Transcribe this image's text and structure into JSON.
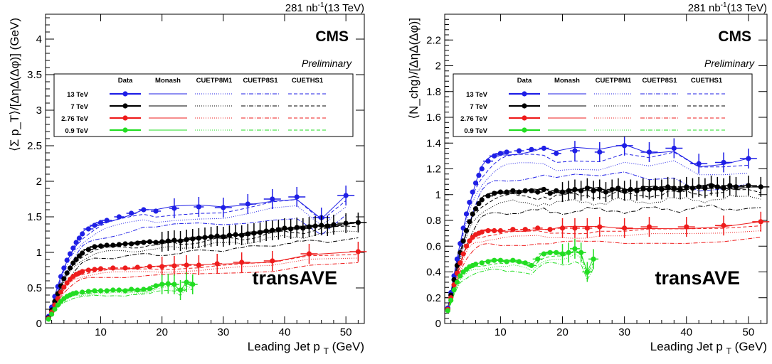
{
  "lumi_label": "281 nb",
  "lumi_exp": "-1",
  "lumi_energy": "(13 TeV)",
  "experiment": "CMS",
  "status": "Preliminary",
  "region": "transAVE",
  "legend": {
    "columns": [
      "Data",
      "Monash",
      "CUETP8M1",
      "CUETP8S1",
      "CUETHS1"
    ],
    "rows": [
      "13 TeV",
      "7 TeV",
      "2.76 TeV",
      "0.9 TeV"
    ]
  },
  "colors": {
    "13 TeV": "#1f1fe6",
    "7 TeV": "#000000",
    "2.76 TeV": "#ee1c1c",
    "0.9 TeV": "#22dd22"
  },
  "chart_data": [
    {
      "type": "scatter",
      "panel": "left",
      "xlabel_main": "Leading Jet p",
      "xlabel_sub": "T",
      "xlabel_unit": "(GeV)",
      "ylabel": "⟨Σ p_T⟩/[ΔηΔ(Δφ)] (GeV)",
      "xlim": [
        1,
        53
      ],
      "ylim": [
        0,
        4.35
      ],
      "xticks": [
        "10",
        "20",
        "30",
        "40",
        "50"
      ],
      "yticks": [
        "0",
        "0.5",
        "1",
        "1.5",
        "2",
        "2.5",
        "3",
        "3.5",
        "4"
      ],
      "series": [
        {
          "name": "13 TeV",
          "x": [
            1.5,
            2.0,
            2.5,
            3.0,
            3.5,
            4.0,
            4.5,
            5.0,
            5.5,
            6.0,
            6.5,
            7.0,
            8.0,
            9.0,
            10.0,
            11.0,
            13.0,
            15.0,
            17.0,
            19.0,
            22.0,
            26.0,
            30.0,
            34.0,
            38.0,
            42.0,
            46.0,
            50.0
          ],
          "y": [
            0.1,
            0.23,
            0.38,
            0.52,
            0.66,
            0.78,
            0.89,
            0.98,
            1.06,
            1.14,
            1.2,
            1.26,
            1.33,
            1.38,
            1.42,
            1.45,
            1.5,
            1.55,
            1.6,
            1.58,
            1.62,
            1.64,
            1.63,
            1.68,
            1.75,
            1.78,
            1.49,
            1.8
          ]
        },
        {
          "name": "7 TeV",
          "x": [
            1.5,
            2.0,
            2.5,
            3.0,
            3.5,
            4.0,
            4.5,
            5.0,
            5.5,
            6.0,
            6.5,
            7.0,
            8.0,
            9.0,
            10.0,
            11.0,
            12.0,
            13.0,
            14.0,
            15.0,
            16.0,
            17.0,
            18.0,
            19.0,
            20.0,
            21.0,
            22.0,
            23.0,
            24.0,
            25.0,
            26.0,
            27.0,
            28.0,
            29.0,
            30.0,
            31.0,
            32.0,
            33.0,
            34.0,
            35.0,
            36.0,
            37.0,
            38.0,
            39.0,
            40.0,
            41.0,
            42.0,
            43.0,
            44.0,
            45.0,
            46.0,
            47.0,
            48.0,
            50.0,
            52.0
          ],
          "y": [
            0.08,
            0.19,
            0.31,
            0.42,
            0.53,
            0.63,
            0.71,
            0.78,
            0.85,
            0.9,
            0.95,
            0.99,
            1.04,
            1.08,
            1.09,
            1.1,
            1.1,
            1.11,
            1.12,
            1.12,
            1.13,
            1.14,
            1.15,
            1.14,
            1.15,
            1.16,
            1.17,
            1.16,
            1.18,
            1.19,
            1.2,
            1.21,
            1.22,
            1.23,
            1.22,
            1.24,
            1.25,
            1.24,
            1.26,
            1.27,
            1.28,
            1.3,
            1.31,
            1.32,
            1.34,
            1.33,
            1.35,
            1.34,
            1.36,
            1.37,
            1.38,
            1.37,
            1.39,
            1.41,
            1.42
          ]
        },
        {
          "name": "2.76 TeV",
          "x": [
            1.5,
            2.0,
            2.5,
            3.0,
            3.5,
            4.0,
            4.5,
            5.0,
            5.5,
            6.0,
            6.5,
            7.0,
            8.0,
            9.0,
            10.0,
            12.0,
            14.0,
            16.0,
            18.0,
            20.0,
            22.0,
            24.0,
            26.0,
            29.0,
            33.0,
            38.0,
            44.0,
            52.0
          ],
          "y": [
            0.07,
            0.16,
            0.26,
            0.35,
            0.44,
            0.51,
            0.57,
            0.62,
            0.66,
            0.69,
            0.71,
            0.73,
            0.75,
            0.76,
            0.77,
            0.78,
            0.78,
            0.79,
            0.8,
            0.8,
            0.81,
            0.82,
            0.82,
            0.84,
            0.86,
            0.88,
            0.98,
            1.01
          ]
        },
        {
          "name": "0.9 TeV",
          "x": [
            1.5,
            2.0,
            2.5,
            3.0,
            3.5,
            4.0,
            4.5,
            5.0,
            5.5,
            6.0,
            7.0,
            8.0,
            9.0,
            10.0,
            11.0,
            12.0,
            13.0,
            14.0,
            15.0,
            16.0,
            17.0,
            18.0,
            19.0,
            20.0,
            21.0,
            22.0,
            23.0,
            24.0,
            25.0
          ],
          "y": [
            0.06,
            0.13,
            0.2,
            0.26,
            0.31,
            0.35,
            0.38,
            0.4,
            0.42,
            0.43,
            0.44,
            0.45,
            0.46,
            0.46,
            0.46,
            0.47,
            0.47,
            0.46,
            0.48,
            0.47,
            0.48,
            0.49,
            0.53,
            0.55,
            0.56,
            0.55,
            0.47,
            0.58,
            0.55
          ]
        }
      ]
    },
    {
      "type": "scatter",
      "panel": "right",
      "xlabel_main": "Leading Jet p",
      "xlabel_sub": "T",
      "xlabel_unit": "(GeV)",
      "ylabel": "⟨N_chg⟩/[ΔηΔ(Δφ)]",
      "xlim": [
        1,
        53
      ],
      "ylim": [
        0,
        2.4
      ],
      "xticks": [
        "10",
        "20",
        "30",
        "40",
        "50"
      ],
      "yticks": [
        "0",
        "0.2",
        "0.4",
        "0.6",
        "0.8",
        "1",
        "1.2",
        "1.4",
        "1.6",
        "1.8",
        "2",
        "2.2"
      ],
      "series": [
        {
          "name": "13 TeV",
          "x": [
            1.5,
            2.0,
            2.5,
            3.0,
            3.5,
            4.0,
            4.5,
            5.0,
            5.5,
            6.0,
            6.5,
            7.0,
            8.0,
            9.0,
            10.0,
            11.0,
            13.0,
            15.0,
            17.0,
            19.0,
            22.0,
            26.0,
            30.0,
            34.0,
            38.0,
            42.0,
            46.0,
            50.0
          ],
          "y": [
            0.12,
            0.24,
            0.37,
            0.5,
            0.62,
            0.74,
            0.85,
            0.94,
            1.02,
            1.09,
            1.15,
            1.2,
            1.26,
            1.3,
            1.32,
            1.33,
            1.34,
            1.35,
            1.36,
            1.32,
            1.34,
            1.33,
            1.38,
            1.33,
            1.36,
            1.24,
            1.25,
            1.28
          ]
        },
        {
          "name": "7 TeV",
          "x": [
            1.5,
            2.0,
            2.5,
            3.0,
            3.5,
            4.0,
            4.5,
            5.0,
            5.5,
            6.0,
            6.5,
            7.0,
            8.0,
            9.0,
            10.0,
            11.0,
            12.0,
            13.0,
            14.0,
            15.0,
            16.0,
            17.0,
            18.0,
            19.0,
            20.0,
            21.0,
            22.0,
            23.0,
            24.0,
            25.0,
            26.0,
            27.0,
            28.0,
            29.0,
            30.0,
            31.0,
            32.0,
            33.0,
            34.0,
            35.0,
            36.0,
            37.0,
            38.0,
            39.0,
            40.0,
            41.0,
            42.0,
            43.0,
            44.0,
            45.0,
            46.0,
            47.0,
            48.0,
            50.0,
            52.0
          ],
          "y": [
            0.11,
            0.22,
            0.34,
            0.45,
            0.55,
            0.64,
            0.72,
            0.79,
            0.85,
            0.89,
            0.93,
            0.96,
            0.99,
            1.01,
            1.02,
            1.02,
            1.03,
            1.02,
            1.03,
            1.03,
            1.02,
            1.04,
            1.01,
            1.03,
            1.02,
            1.03,
            1.04,
            1.03,
            1.05,
            1.03,
            1.04,
            1.02,
            1.04,
            1.05,
            1.03,
            1.04,
            1.03,
            1.05,
            1.04,
            1.05,
            1.04,
            1.06,
            1.05,
            1.04,
            1.06,
            1.05,
            1.06,
            1.05,
            1.07,
            1.06,
            1.05,
            1.07,
            1.06,
            1.07,
            1.06
          ]
        },
        {
          "name": "2.76 TeV",
          "x": [
            1.5,
            2.0,
            2.5,
            3.0,
            3.5,
            4.0,
            4.5,
            5.0,
            5.5,
            6.0,
            6.5,
            7.0,
            8.0,
            9.0,
            10.0,
            12.0,
            14.0,
            16.0,
            18.0,
            20.0,
            22.0,
            24.0,
            26.0,
            30.0,
            34.0,
            40.0,
            46.0,
            52.0
          ],
          "y": [
            0.11,
            0.2,
            0.3,
            0.39,
            0.47,
            0.54,
            0.6,
            0.64,
            0.67,
            0.69,
            0.7,
            0.71,
            0.72,
            0.72,
            0.72,
            0.73,
            0.73,
            0.74,
            0.73,
            0.74,
            0.74,
            0.74,
            0.75,
            0.74,
            0.75,
            0.75,
            0.76,
            0.79
          ]
        },
        {
          "name": "0.9 TeV",
          "x": [
            1.5,
            2.0,
            2.5,
            3.0,
            3.5,
            4.0,
            4.5,
            5.0,
            5.5,
            6.0,
            7.0,
            8.0,
            9.0,
            10.0,
            11.0,
            12.0,
            13.0,
            14.0,
            15.0,
            16.0,
            17.0,
            18.0,
            19.0,
            20.0,
            21.0,
            22.0,
            23.0,
            24.0,
            25.0
          ],
          "y": [
            0.1,
            0.18,
            0.26,
            0.32,
            0.37,
            0.4,
            0.42,
            0.44,
            0.45,
            0.46,
            0.47,
            0.48,
            0.49,
            0.49,
            0.48,
            0.49,
            0.48,
            0.47,
            0.45,
            0.5,
            0.54,
            0.55,
            0.55,
            0.54,
            0.55,
            0.58,
            0.55,
            0.4,
            0.5
          ]
        }
      ]
    }
  ]
}
